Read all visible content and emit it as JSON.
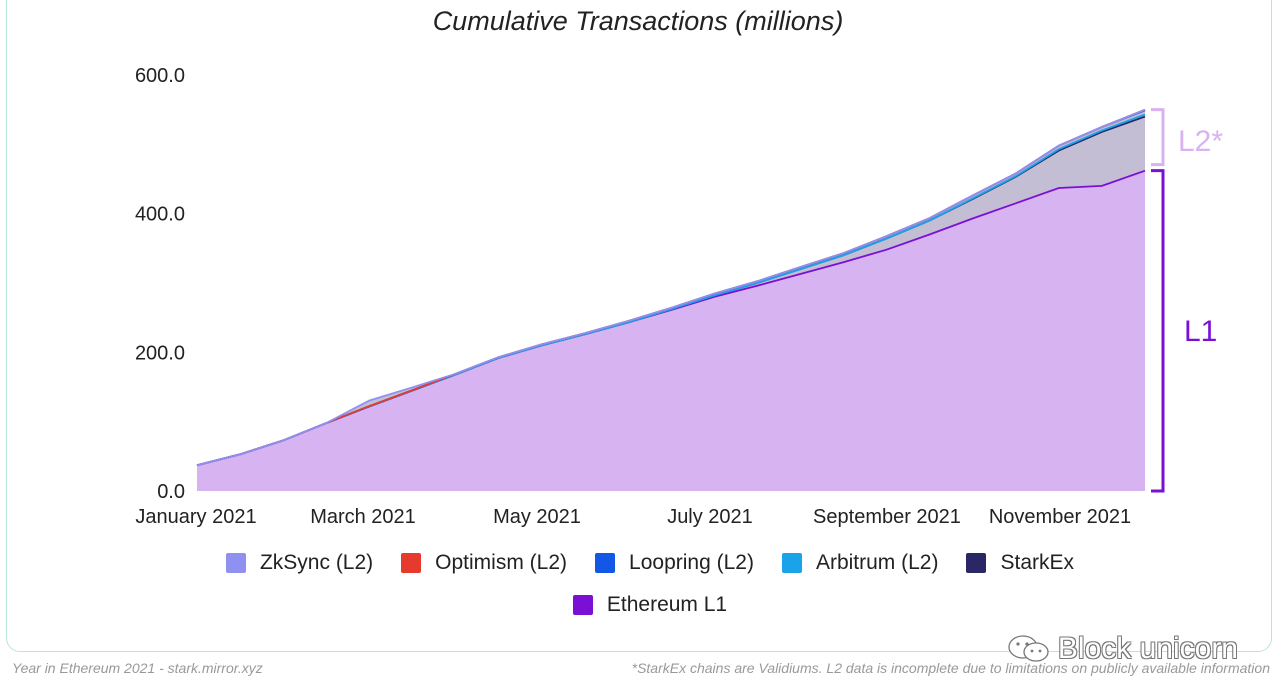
{
  "chart_data": {
    "type": "area",
    "title": "Cumulative Transactions (millions)",
    "xlabel": "",
    "ylabel": "",
    "ylim": [
      0,
      600
    ],
    "y_ticks": [
      "0.0",
      "200.0",
      "400.0",
      "600.0"
    ],
    "x_ticks": [
      "January 2021",
      "March 2021",
      "May 2021",
      "July 2021",
      "September 2021",
      "November 2021"
    ],
    "x_months": [
      0,
      2,
      4,
      6,
      8,
      10
    ],
    "x_range_months": [
      0,
      11
    ],
    "grid": false,
    "stacked": true,
    "legend_position": "bottom",
    "x": [
      0,
      0.5,
      1,
      1.5,
      2,
      2.5,
      3,
      3.5,
      4,
      4.5,
      5,
      5.5,
      6,
      6.5,
      7,
      7.5,
      8,
      8.5,
      9,
      9.5,
      10,
      10.5,
      11
    ],
    "series": [
      {
        "name": "Ethereum L1",
        "color": "#7a10d6",
        "values": [
          37,
          53,
          73,
          98,
          122,
          145,
          168,
          192,
          210,
          226,
          243,
          261,
          280,
          296,
          313,
          330,
          348,
          370,
          393,
          415,
          437,
          440,
          462
        ]
      },
      {
        "name": "StarkEx",
        "color": "#2a2766",
        "values": [
          0,
          0,
          0,
          0,
          0,
          0,
          0,
          0,
          0,
          0,
          0,
          1,
          2,
          4,
          7,
          10,
          16,
          20,
          28,
          38,
          54,
          78,
          78
        ]
      },
      {
        "name": "Arbitrum (L2)",
        "color": "#1aa3e8",
        "values": [
          0,
          0,
          0,
          0,
          0,
          0,
          0,
          0,
          0,
          0,
          0,
          0,
          0,
          0,
          0,
          0,
          0,
          0,
          1,
          1,
          2,
          2,
          3
        ]
      },
      {
        "name": "Loopring (L2)",
        "color": "#1257e6",
        "values": [
          0,
          0,
          0,
          0,
          0.5,
          0.5,
          1,
          1,
          1.5,
          1.5,
          2,
          2,
          2.5,
          2.5,
          3,
          3,
          3.5,
          3.5,
          4,
          4,
          5,
          5,
          6
        ]
      },
      {
        "name": "Optimism (L2)",
        "color": "#e63a2e",
        "values": [
          0,
          0,
          0,
          0,
          0,
          0,
          0,
          0,
          0,
          0,
          0,
          0,
          0,
          0,
          0,
          0,
          0,
          0,
          0,
          0,
          0,
          0,
          1
        ]
      },
      {
        "name": "ZkSync (L2)",
        "color": "#8f91f2",
        "values": [
          0,
          0,
          0,
          0,
          8,
          4,
          0,
          0,
          0,
          0,
          0,
          0,
          0,
          0,
          0,
          0,
          0,
          0,
          0,
          0,
          0,
          0,
          0
        ]
      }
    ],
    "legend_order": [
      "ZkSync (L2)",
      "Optimism (L2)",
      "Loopring (L2)",
      "Arbitrum (L2)",
      "StarkEx",
      "Ethereum L1"
    ],
    "annotations": [
      {
        "text": "L2*",
        "color": "#d9b3f0"
      },
      {
        "text": "L1",
        "color": "#7a10d6"
      }
    ],
    "fill_colors": {
      "l1": "#d7b4f1",
      "l2": "#c3bed4"
    }
  },
  "footer": {
    "source": "Year in Ethereum 2021 - stark.mirror.xyz",
    "note": "*StarkEx chains are Validiums. L2 data is incomplete due to limitations on publicly available information"
  },
  "watermark": {
    "text": "Block unicorn"
  }
}
